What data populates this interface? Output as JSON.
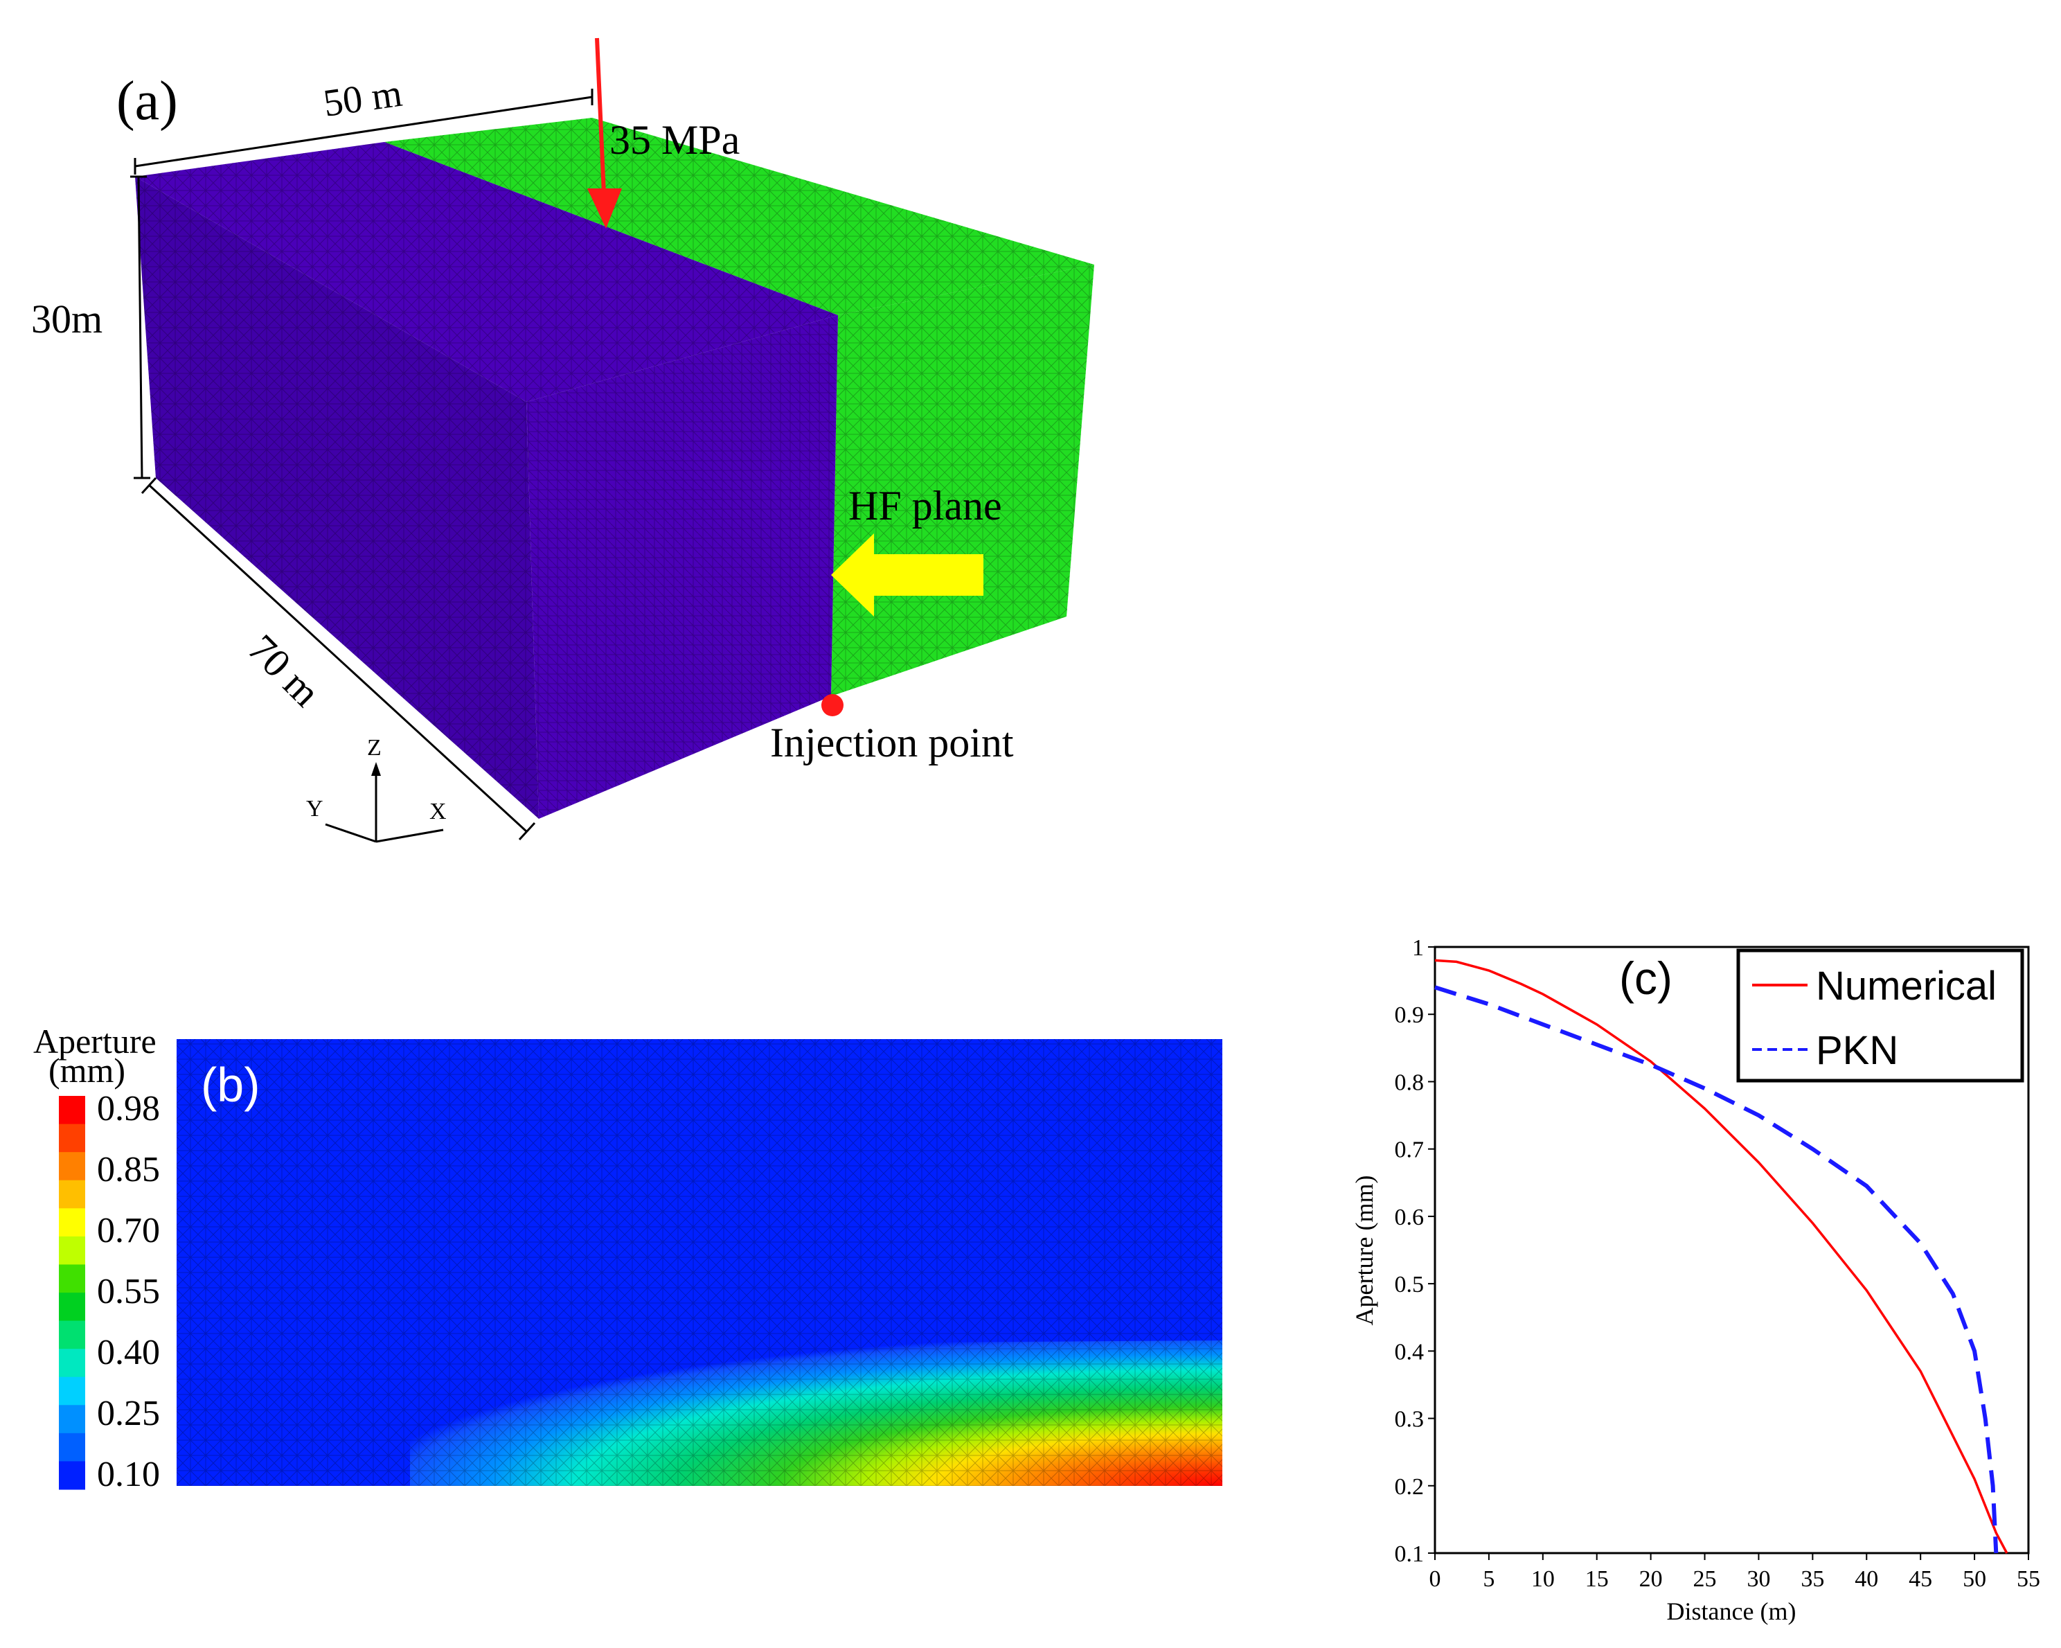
{
  "panel_a": {
    "label": "(a)",
    "dim_width": "50 m",
    "dim_height": "30m",
    "dim_length": "70 m",
    "load": "35 MPa",
    "hf_label": "HF plane",
    "injection_label": "Injection point",
    "axes": {
      "z": "Z",
      "y": "Y",
      "x": "X"
    },
    "colors": {
      "block": "#4a00b8",
      "block_side": "#4000a8",
      "green": "#22dd22",
      "arrow": "#ff1a1a",
      "hf_arrow": "#ffff00"
    }
  },
  "panel_b": {
    "label": "(b)",
    "colorbar_title_1": "Aperture",
    "colorbar_title_2": "(mm)",
    "tick_labels": [
      "0.98",
      "0.85",
      "0.70",
      "0.55",
      "0.40",
      "0.25",
      "0.10"
    ],
    "colorbar_colors": [
      "#ff0000",
      "#ff4000",
      "#ff8000",
      "#ffbf00",
      "#ffff00",
      "#bfff00",
      "#40e000",
      "#00d020",
      "#00e070",
      "#00e8c0",
      "#00d0ff",
      "#0090ff",
      "#0060ff",
      "#0020ff"
    ]
  },
  "chart_data": {
    "type": "line",
    "panel_label": "(c)",
    "xlabel": "Distance (m)",
    "ylabel": "Aperture (mm)",
    "xlim": [
      0,
      55
    ],
    "ylim": [
      0.1,
      1
    ],
    "xticks": [
      "0",
      "5",
      "10",
      "15",
      "20",
      "25",
      "30",
      "35",
      "40",
      "45",
      "50",
      "55"
    ],
    "yticks": [
      "0.1",
      "0.2",
      "0.3",
      "0.4",
      "0.5",
      "0.6",
      "0.7",
      "0.8",
      "0.9",
      "1"
    ],
    "legend_position": "top-right",
    "series": [
      {
        "name": "Numerical",
        "color": "#ff0000",
        "dash": "solid",
        "x": [
          0,
          2,
          5,
          8,
          10,
          15,
          20,
          25,
          30,
          35,
          40,
          45,
          50,
          51,
          52,
          53
        ],
        "y": [
          0.98,
          0.978,
          0.965,
          0.945,
          0.93,
          0.885,
          0.83,
          0.76,
          0.68,
          0.59,
          0.49,
          0.37,
          0.21,
          0.17,
          0.13,
          0.1
        ]
      },
      {
        "name": "PKN",
        "color": "#1a1aff",
        "dash": "dashed",
        "x": [
          0,
          5,
          10,
          15,
          20,
          25,
          30,
          35,
          40,
          45,
          48,
          50,
          51,
          51.7,
          52
        ],
        "y": [
          0.94,
          0.915,
          0.885,
          0.855,
          0.825,
          0.79,
          0.75,
          0.7,
          0.645,
          0.56,
          0.485,
          0.4,
          0.3,
          0.2,
          0.1
        ]
      }
    ]
  }
}
